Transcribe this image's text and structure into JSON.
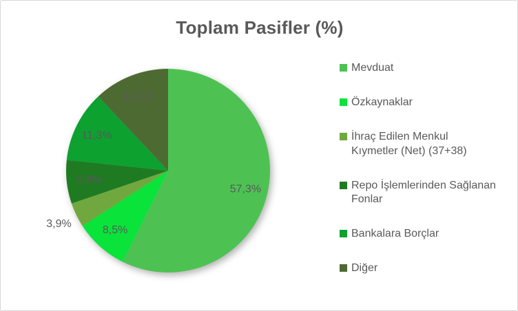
{
  "title": "Toplam Pasifler (%)",
  "colors": {
    "text": "#595959",
    "background": "#ffffff",
    "frame_border": "#d7d7d7"
  },
  "chart_data": {
    "type": "pie",
    "title": "Toplam Pasifler (%)",
    "categories": [
      "Mevduat",
      "Özkaynaklar",
      "İhraç Edilen Menkul Kıymetler (Net) (37+38)",
      "Repo İşlemlerinden Sağlanan Fonlar",
      "Bankalara Borçlar",
      "Diğer"
    ],
    "values": [
      57.3,
      8.5,
      3.9,
      6.9,
      11.3,
      12.0
    ],
    "labels": [
      "57,3%",
      "8,5%",
      "3,9%",
      "6,9%",
      "11,3%",
      "12,0%"
    ],
    "slice_colors": [
      "#4DC253",
      "#0AE339",
      "#70A83F",
      "#1F7B22",
      "#0DA130",
      "#4E6A33"
    ],
    "start_angle_deg": 0,
    "direction": "clockwise",
    "legend_position": "right",
    "label_color": "#595959"
  },
  "legend": {
    "items": [
      {
        "label": "Mevduat",
        "color": "#4DC253"
      },
      {
        "label": "Özkaynaklar",
        "color": "#0AE339"
      },
      {
        "label": "İhraç Edilen Menkul\nKıymetler (Net) (37+38)",
        "color": "#70A83F"
      },
      {
        "label": "Repo İşlemlerinden Sağlanan\nFonlar",
        "color": "#1F7B22"
      },
      {
        "label": "Bankalara Borçlar",
        "color": "#0DA130"
      },
      {
        "label": "Diğer",
        "color": "#4E6A33"
      }
    ]
  }
}
